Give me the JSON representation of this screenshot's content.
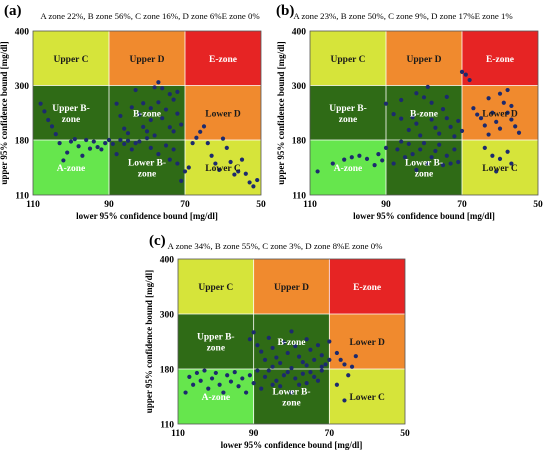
{
  "figure": {
    "zone_colors": {
      "a": "#66e64d",
      "b": "#2f6b16",
      "cup": "#d6e43a",
      "dup": "#f08a2e",
      "e": "#e62424",
      "cdn": "#d6e43a"
    },
    "marker_color": "#1c2a6e"
  },
  "chart_data": [
    {
      "panel_label": "(a)",
      "type": "scatter",
      "title": "A zone 22%, B zone 56%, C zone 16%, D zone 6%E zone 0%",
      "xlabel": "lower 95% confidence bound [mg/dl]",
      "ylabel": "upper 95% confidence bound [mg/dl]",
      "x_reversed": true,
      "xlim": [
        110,
        50
      ],
      "ylim": [
        110,
        400
      ],
      "x_ticks": [
        "110",
        "90",
        "70",
        "50"
      ],
      "y_ticks": [
        "400",
        "300",
        "180",
        "110"
      ],
      "zone_labels": {
        "upper_c": "Upper C",
        "upper_d": "Upper D",
        "e_zone": "E-zone",
        "upper_b": "Upper B-\nzone",
        "b_zone": "B-zone",
        "lower_d": "Lower D",
        "a_zone": "A-zone",
        "lower_b": "Lower B-\nzone",
        "lower_c": "Lower C"
      },
      "points": [
        [
          108,
          260
        ],
        [
          107,
          243
        ],
        [
          106,
          224
        ],
        [
          105,
          210
        ],
        [
          104,
          193
        ],
        [
          103,
          176
        ],
        [
          102,
          154
        ],
        [
          101,
          164
        ],
        [
          100,
          178
        ],
        [
          99,
          182
        ],
        [
          98,
          172
        ],
        [
          97,
          160
        ],
        [
          96,
          180
        ],
        [
          95,
          169
        ],
        [
          94,
          178
        ],
        [
          93,
          171
        ],
        [
          92,
          168
        ],
        [
          91,
          176
        ],
        [
          90,
          180
        ],
        [
          89,
          175
        ],
        [
          88,
          162
        ],
        [
          87,
          180
        ],
        [
          86,
          175
        ],
        [
          85,
          179
        ],
        [
          84,
          168
        ],
        [
          83,
          176
        ],
        [
          82,
          178
        ],
        [
          88,
          260
        ],
        [
          87,
          233
        ],
        [
          86,
          205
        ],
        [
          85,
          195
        ],
        [
          84,
          252
        ],
        [
          83,
          290
        ],
        [
          82,
          236
        ],
        [
          81,
          209
        ],
        [
          80,
          199
        ],
        [
          79,
          224
        ],
        [
          78,
          296
        ],
        [
          77,
          263
        ],
        [
          76,
          228
        ],
        [
          75,
          247
        ],
        [
          74,
          208
        ],
        [
          73,
          199
        ],
        [
          72,
          286
        ],
        [
          71,
          214
        ],
        [
          81,
          261
        ],
        [
          79,
          250
        ],
        [
          77,
          306
        ],
        [
          76,
          294
        ],
        [
          74,
          281
        ],
        [
          73,
          269
        ],
        [
          72,
          238
        ],
        [
          80,
          184
        ],
        [
          79,
          170
        ],
        [
          78,
          190
        ],
        [
          77,
          162
        ],
        [
          75,
          173
        ],
        [
          74,
          155
        ],
        [
          73,
          168
        ],
        [
          72,
          150
        ],
        [
          71,
          128
        ],
        [
          70,
          140
        ],
        [
          69,
          145
        ],
        [
          68,
          176
        ],
        [
          67,
          185
        ],
        [
          66,
          198
        ],
        [
          65,
          210
        ],
        [
          64,
          176
        ],
        [
          63,
          160
        ],
        [
          62,
          150
        ],
        [
          61,
          142
        ],
        [
          60,
          183
        ],
        [
          59,
          170
        ],
        [
          58,
          152
        ],
        [
          57,
          136
        ],
        [
          56,
          140
        ],
        [
          55,
          155
        ],
        [
          54,
          137
        ],
        [
          53,
          126
        ],
        [
          52,
          121
        ],
        [
          51,
          129
        ]
      ]
    },
    {
      "panel_label": "(b)",
      "type": "scatter",
      "title": "A zone 23%, B zone 50%, C zone 9%, D zone 17%E zone 1%",
      "xlabel": "lower 95% confidence bound [mg/dl]",
      "ylabel": "upper 95% confidence bound [mg/dl]",
      "x_reversed": true,
      "xlim": [
        110,
        50
      ],
      "ylim": [
        110,
        400
      ],
      "x_ticks": [
        "110",
        "90",
        "70",
        "50"
      ],
      "y_ticks": [
        "400",
        "300",
        "180",
        "110"
      ],
      "zone_labels": {
        "upper_c": "Upper C",
        "upper_d": "Upper D",
        "e_zone": "E-zone",
        "upper_b": "Upper B-\nzone",
        "b_zone": "B-zone",
        "lower_d": "Lower D",
        "a_zone": "A-zone",
        "lower_b": "Lower B-\nzone",
        "lower_c": "Lower C"
      },
      "points": [
        [
          108,
          140
        ],
        [
          104,
          150
        ],
        [
          101,
          155
        ],
        [
          99,
          158
        ],
        [
          97,
          160
        ],
        [
          95,
          156
        ],
        [
          93,
          148
        ],
        [
          92,
          162
        ],
        [
          91,
          154
        ],
        [
          90,
          170
        ],
        [
          88,
          150
        ],
        [
          87,
          168
        ],
        [
          86,
          178
        ],
        [
          85,
          158
        ],
        [
          84,
          175
        ],
        [
          83,
          162
        ],
        [
          82,
          142
        ],
        [
          81,
          168
        ],
        [
          80,
          176
        ],
        [
          79,
          150
        ],
        [
          78,
          158
        ],
        [
          77,
          166
        ],
        [
          76,
          174
        ],
        [
          75,
          148
        ],
        [
          74,
          160
        ],
        [
          73,
          150
        ],
        [
          72,
          168
        ],
        [
          71,
          152
        ],
        [
          90,
          260
        ],
        [
          88,
          237
        ],
        [
          86,
          227
        ],
        [
          84,
          202
        ],
        [
          83,
          230
        ],
        [
          82,
          216
        ],
        [
          81,
          190
        ],
        [
          80,
          274
        ],
        [
          79,
          297
        ],
        [
          78,
          225
        ],
        [
          77,
          207
        ],
        [
          76,
          194
        ],
        [
          75,
          248
        ],
        [
          74,
          228
        ],
        [
          73,
          209
        ],
        [
          72,
          188
        ],
        [
          71,
          222
        ],
        [
          70,
          200
        ],
        [
          86,
          268
        ],
        [
          82,
          283
        ],
        [
          78,
          262
        ],
        [
          74,
          275
        ],
        [
          70,
          325
        ],
        [
          69,
          320
        ],
        [
          68,
          310
        ],
        [
          67,
          250
        ],
        [
          66,
          236
        ],
        [
          65,
          228
        ],
        [
          64,
          212
        ],
        [
          63,
          192
        ],
        [
          62,
          240
        ],
        [
          61,
          220
        ],
        [
          60,
          205
        ],
        [
          59,
          262
        ],
        [
          58,
          240
        ],
        [
          57,
          225
        ],
        [
          56,
          210
        ],
        [
          55,
          196
        ],
        [
          63,
          272
        ],
        [
          60,
          282
        ],
        [
          58,
          290
        ],
        [
          57,
          255
        ],
        [
          64,
          170
        ],
        [
          62,
          160
        ],
        [
          61,
          140
        ],
        [
          60,
          156
        ],
        [
          58,
          165
        ],
        [
          57,
          150
        ]
      ]
    },
    {
      "panel_label": "(c)",
      "type": "scatter",
      "title": "A zone 34%, B zone 55%, C zone 3%, D zone 8%E zone 0%",
      "xlabel": "lower 95% confidence bound [mg/dl]",
      "ylabel": "upper 95% confidence bound [mg/dl]",
      "x_reversed": true,
      "xlim": [
        110,
        50
      ],
      "ylim": [
        110,
        400
      ],
      "x_ticks": [
        "110",
        "90",
        "70",
        "50"
      ],
      "y_ticks": [
        "400",
        "300",
        "180",
        "110"
      ],
      "zone_labels": {
        "upper_c": "Upper C",
        "upper_d": "Upper D",
        "e_zone": "E-zone",
        "upper_b": "Upper B-\nzone",
        "b_zone": "B-zone",
        "lower_d": "Lower D",
        "a_zone": "A-zone",
        "lower_b": "Lower B-\nzone",
        "lower_c": "Lower C"
      },
      "points": [
        [
          108,
          150
        ],
        [
          107,
          170
        ],
        [
          106,
          160
        ],
        [
          105,
          175
        ],
        [
          104,
          165
        ],
        [
          103,
          178
        ],
        [
          102,
          155
        ],
        [
          101,
          168
        ],
        [
          100,
          175
        ],
        [
          99,
          160
        ],
        [
          98,
          150
        ],
        [
          97,
          172
        ],
        [
          96,
          164
        ],
        [
          95,
          176
        ],
        [
          94,
          158
        ],
        [
          93,
          168
        ],
        [
          92,
          150
        ],
        [
          91,
          172
        ],
        [
          90,
          162
        ],
        [
          89,
          178
        ],
        [
          88,
          155
        ],
        [
          87,
          170
        ],
        [
          86,
          178
        ],
        [
          85,
          160
        ],
        [
          84,
          165
        ],
        [
          83,
          158
        ],
        [
          82,
          172
        ],
        [
          81,
          176
        ],
        [
          80,
          150
        ],
        [
          79,
          168
        ],
        [
          78,
          160
        ],
        [
          77,
          174
        ],
        [
          76,
          162
        ],
        [
          75,
          176
        ],
        [
          74,
          170
        ],
        [
          73,
          165
        ],
        [
          72,
          178
        ],
        [
          91,
          245
        ],
        [
          90,
          260
        ],
        [
          89,
          232
        ],
        [
          88,
          218
        ],
        [
          87,
          200
        ],
        [
          86,
          248
        ],
        [
          85,
          226
        ],
        [
          84,
          205
        ],
        [
          83,
          193
        ],
        [
          82,
          238
        ],
        [
          81,
          215
        ],
        [
          80,
          262
        ],
        [
          79,
          230
        ],
        [
          78,
          207
        ],
        [
          77,
          195
        ],
        [
          76,
          245
        ],
        [
          75,
          222
        ],
        [
          74,
          200
        ],
        [
          73,
          232
        ],
        [
          72,
          210
        ],
        [
          71,
          190
        ],
        [
          70,
          200
        ],
        [
          85,
          185
        ],
        [
          80,
          182
        ],
        [
          76,
          188
        ],
        [
          72,
          185
        ],
        [
          70,
          240
        ],
        [
          68,
          215
        ],
        [
          67,
          200
        ],
        [
          66,
          190
        ],
        [
          64,
          185
        ],
        [
          63,
          208
        ],
        [
          68,
          160
        ],
        [
          66,
          140
        ],
        [
          65,
          172
        ]
      ]
    }
  ]
}
